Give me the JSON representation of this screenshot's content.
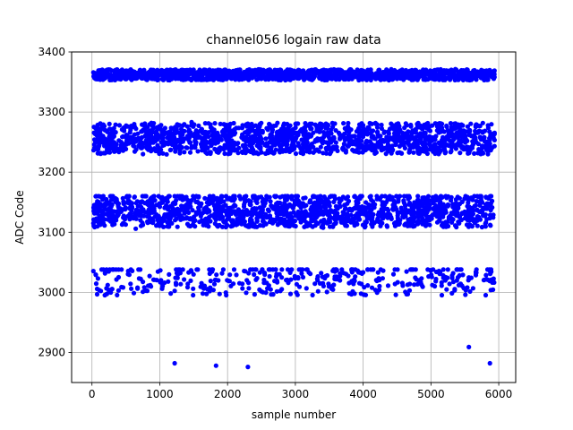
{
  "chart_data": {
    "type": "scatter",
    "title": "channel056 logain raw data",
    "xlabel": "sample number",
    "ylabel": "ADC Code",
    "xlim": [
      -300,
      6250
    ],
    "ylim": [
      2850,
      3400
    ],
    "xticks": [
      0,
      1000,
      2000,
      3000,
      4000,
      5000,
      6000
    ],
    "yticks": [
      2900,
      3000,
      3100,
      3200,
      3300,
      3400
    ],
    "grid": true,
    "marker_color": "#0000ff",
    "n_samples": 6000,
    "clusters": [
      {
        "center": 3362,
        "min": 3353,
        "max": 3374,
        "fraction": 0.25
      },
      {
        "center": 3256,
        "min": 3226,
        "max": 3287,
        "fraction": 0.25
      },
      {
        "center": 3136,
        "min": 3095,
        "max": 3160,
        "fraction": 0.25
      },
      {
        "center": 3022,
        "min": 2975,
        "max": 3038,
        "fraction": 0.07
      }
    ],
    "outliers": [
      {
        "x": 1220,
        "y": 2882
      },
      {
        "x": 1830,
        "y": 2878
      },
      {
        "x": 2300,
        "y": 2876
      },
      {
        "x": 5560,
        "y": 2909
      },
      {
        "x": 5870,
        "y": 2882
      }
    ]
  }
}
